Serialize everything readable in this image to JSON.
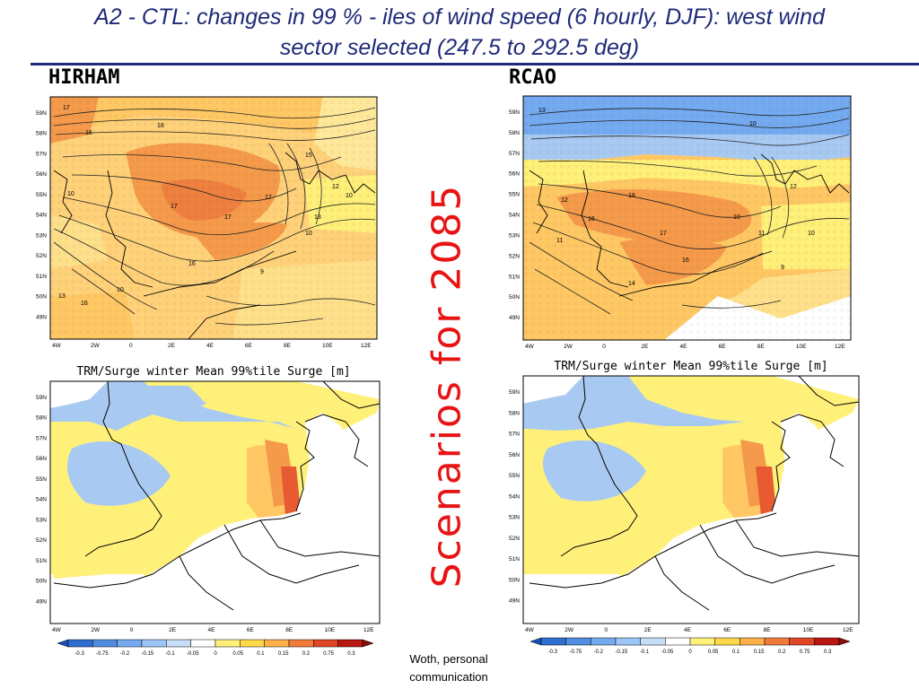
{
  "title_line1": "A2 - CTL: changes in 99 % - iles of wind speed (6 hourly, DJF): west wind",
  "title_line2": "sector selected (247.5 to 292.5 deg)",
  "labels": {
    "left": "HIRHAM",
    "right": "RCAO"
  },
  "vertical_text": "Scenarios for 2085",
  "credit": {
    "line1": "Woth, personal",
    "line2": "communication"
  },
  "surge_title": "TRM/Surge winter Mean 99%tile Surge [m]",
  "lat_ticks": [
    "59N",
    "58N",
    "57N",
    "56N",
    "55N",
    "54N",
    "53N",
    "52N",
    "51N",
    "50N",
    "49N"
  ],
  "lon_ticks": [
    "4W",
    "2W",
    "0",
    "2E",
    "4E",
    "6E",
    "8E",
    "10E",
    "12E"
  ],
  "colorbar": {
    "ticks": [
      "-0.3",
      "-0.75",
      "-0.2",
      "-0.15",
      "-0.1",
      "-0.05",
      "0",
      "0.05",
      "0.1",
      "0.15",
      "0.2",
      "0.75",
      "0.3"
    ],
    "colors": [
      "#1a4fb8",
      "#2f6fd0",
      "#4f8de0",
      "#74aaf0",
      "#9cc6f8",
      "#c6def8",
      "#ffffff",
      "#fff07a",
      "#ffd84a",
      "#ffb04a",
      "#f07a38",
      "#e04526",
      "#b81810",
      "#8c0c08"
    ]
  },
  "map_colors": {
    "land": "#ffffff",
    "blue": "#a8caf2",
    "yellow": "#fff07a",
    "orange": "#ffc864",
    "dark_orange": "#f59a4a",
    "red": "#e85a32"
  },
  "contour_labels_hirham": [
    "17",
    "16",
    "18",
    "10",
    "17",
    "17",
    "16",
    "9",
    "10",
    "10",
    "13",
    "12",
    "17",
    "15",
    "16",
    "13",
    "10"
  ],
  "contour_labels_rcao": [
    "13",
    "11",
    "10",
    "12",
    "16",
    "18",
    "17",
    "14",
    "16",
    "11",
    "9",
    "12",
    "10",
    "10"
  ]
}
